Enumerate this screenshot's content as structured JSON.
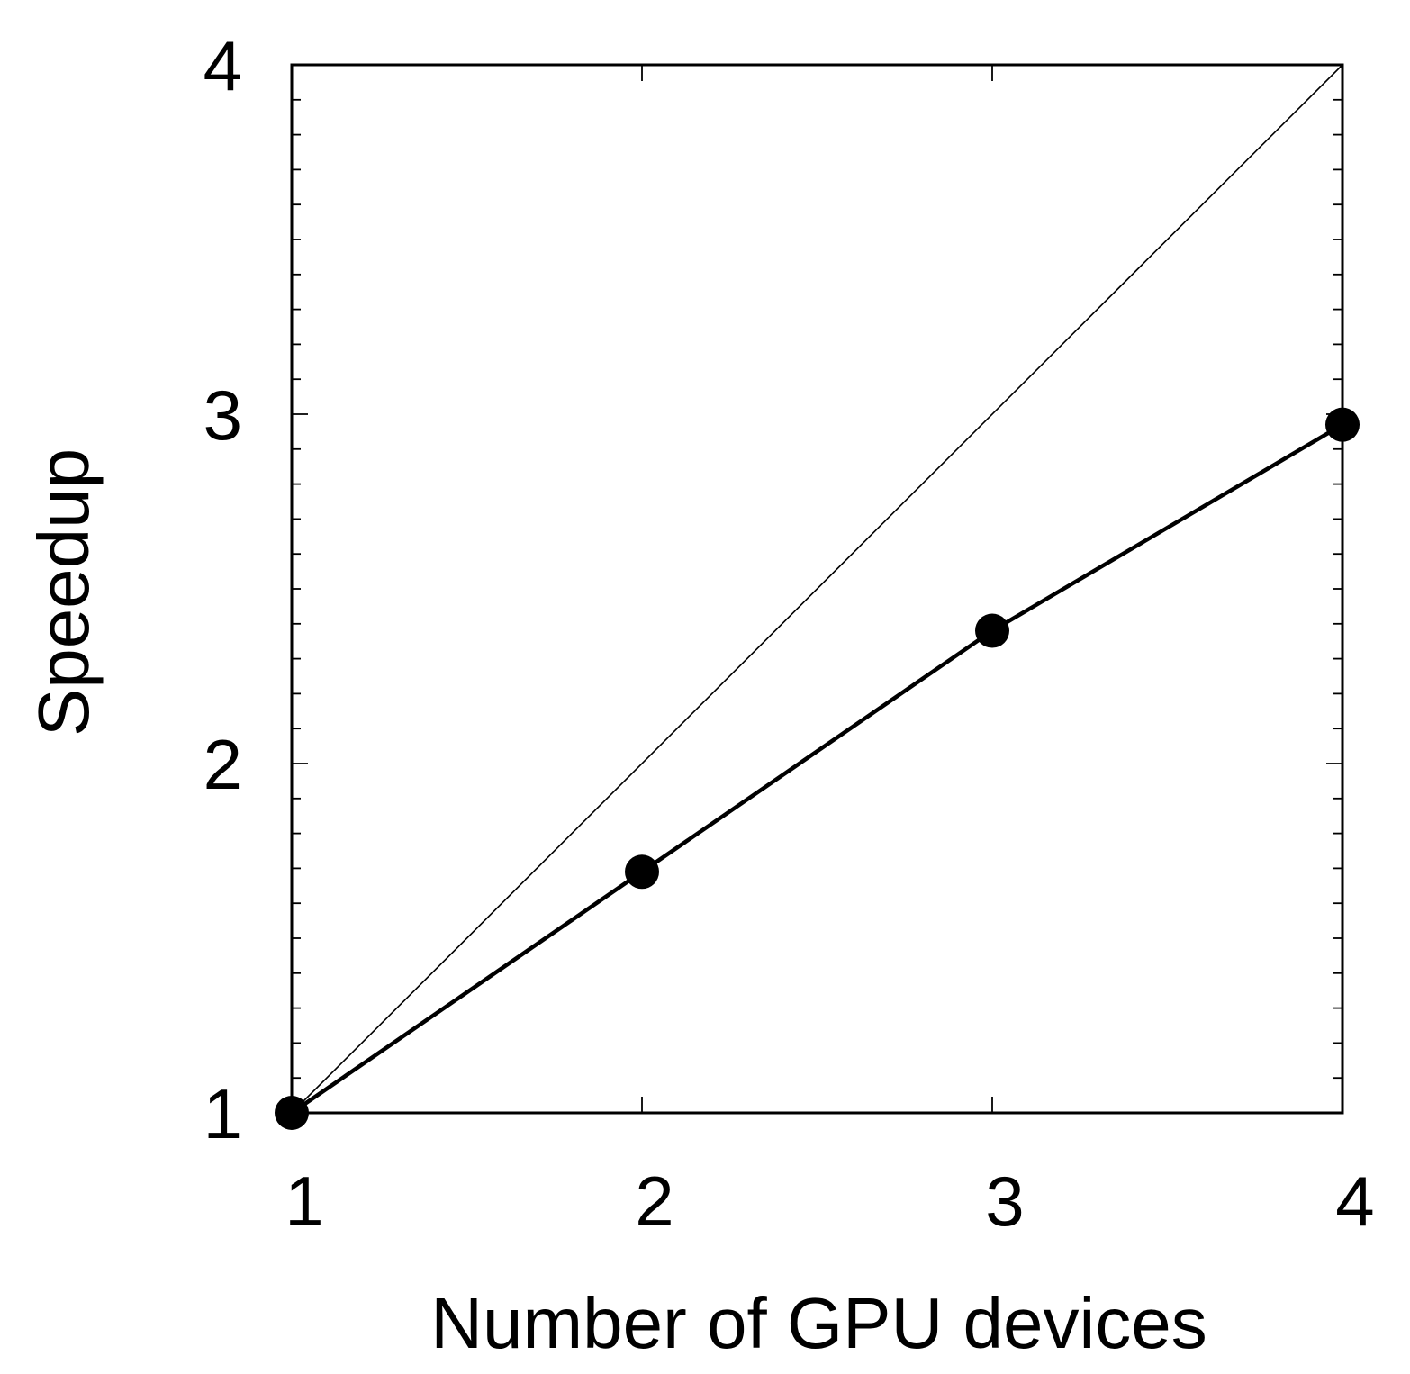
{
  "chart_data": {
    "type": "line",
    "title": "",
    "xlabel": "Number of GPU devices",
    "ylabel": "Speedup",
    "xlim": [
      1,
      4
    ],
    "ylim": [
      1,
      4
    ],
    "x_ticks": [
      1,
      2,
      3,
      4
    ],
    "x_tick_labels": [
      "1",
      "2",
      "3",
      "4"
    ],
    "y_ticks": [
      1,
      2,
      3,
      4
    ],
    "y_tick_labels": [
      "1",
      "2",
      "3",
      "4"
    ],
    "y_minor_step": 0.1,
    "grid": false,
    "legend": "none",
    "series": [
      {
        "x": [
          1,
          2,
          3,
          4
        ],
        "values": [
          1.0,
          1.69,
          2.38,
          2.97
        ],
        "marker": "filled-circle",
        "color": "#000000"
      }
    ],
    "reference_line": {
      "x": [
        1,
        4
      ],
      "values": [
        1,
        4
      ],
      "color": "#000000"
    }
  }
}
